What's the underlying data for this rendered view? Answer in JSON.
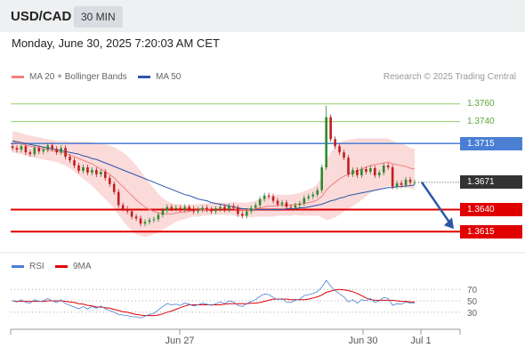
{
  "header": {
    "pair": "USD/CAD",
    "timeframe": "30 MIN"
  },
  "datetime": "Monday, June 30, 2025 7:20:03 AM CET",
  "legend": {
    "ma20_label": "MA 20 + Bollinger Bands",
    "ma50_label": "MA 50",
    "rsi_label": "RSI",
    "ma9_label": "9MA",
    "credit": "Research © 2025 Trading Central"
  },
  "colors": {
    "ma20": "#f08080",
    "ma50": "#2b57a6",
    "bollinger_fill": "#fbdada",
    "candle_up": "#2f8a2f",
    "candle_down": "#c0201f",
    "target_line": "#e00000",
    "resistance_line": "#8fcf6b",
    "pivot_line": "#4a7fd4",
    "rsi": "#4a7fd4",
    "rsi_ma": "#e00000"
  },
  "chart_data": [
    {
      "type": "line",
      "name": "price",
      "y_range": [
        1.3597,
        1.3778
      ],
      "x_ticks": [
        "Jun 27",
        "Jun 30",
        "Jul 1"
      ],
      "levels": [
        {
          "label": "1.3760",
          "value": 1.376,
          "kind": "resistance"
        },
        {
          "label": "1.3740",
          "value": 1.374,
          "kind": "resistance"
        },
        {
          "label": "1.3715",
          "value": 1.3715,
          "kind": "pivot"
        },
        {
          "label": "1.3671",
          "value": 1.3671,
          "kind": "current"
        },
        {
          "label": "1.3640",
          "value": 1.364,
          "kind": "target"
        },
        {
          "label": "1.3615",
          "value": 1.3615,
          "kind": "target"
        }
      ],
      "closes": [
        1.371,
        1.3708,
        1.3712,
        1.3705,
        1.3703,
        1.371,
        1.3706,
        1.3708,
        1.3713,
        1.3709,
        1.3705,
        1.371,
        1.37,
        1.3696,
        1.369,
        1.3684,
        1.3688,
        1.3682,
        1.3685,
        1.368,
        1.3683,
        1.3676,
        1.3669,
        1.366,
        1.3645,
        1.3641,
        1.3638,
        1.3632,
        1.363,
        1.3624,
        1.3626,
        1.3628,
        1.3629,
        1.3634,
        1.3639,
        1.3643,
        1.3641,
        1.3642,
        1.364,
        1.3643,
        1.3641,
        1.3638,
        1.364,
        1.3642,
        1.364,
        1.3638,
        1.3641,
        1.3643,
        1.364,
        1.3644,
        1.3642,
        1.3635,
        1.3633,
        1.3638,
        1.3642,
        1.3645,
        1.3652,
        1.3656,
        1.3655,
        1.365,
        1.3646,
        1.3648,
        1.3643,
        1.3642,
        1.3645,
        1.3647,
        1.3653,
        1.3655,
        1.3657,
        1.3662,
        1.3688,
        1.3745,
        1.372,
        1.3712,
        1.3705,
        1.3699,
        1.368,
        1.3685,
        1.3679,
        1.3686,
        1.3683,
        1.3687,
        1.3679,
        1.3682,
        1.369,
        1.3688,
        1.3666,
        1.367,
        1.3668,
        1.3674,
        1.3671,
        1.3671
      ],
      "ma20": [
        1.3717,
        1.3716,
        1.3715,
        1.3713,
        1.3712,
        1.3711,
        1.371,
        1.3709,
        1.3708,
        1.3707,
        1.3706,
        1.3705,
        1.3704,
        1.3702,
        1.37,
        1.3698,
        1.3696,
        1.3694,
        1.3692,
        1.3689,
        1.3686,
        1.3683,
        1.368,
        1.3676,
        1.3671,
        1.3666,
        1.3661,
        1.3656,
        1.3651,
        1.3647,
        1.3643,
        1.364,
        1.3638,
        1.3636,
        1.3635,
        1.3635,
        1.3635,
        1.3636,
        1.3637,
        1.3637,
        1.3638,
        1.3639,
        1.3639,
        1.364,
        1.364,
        1.3641,
        1.3641,
        1.3641,
        1.3641,
        1.3641,
        1.3641,
        1.364,
        1.364,
        1.364,
        1.364,
        1.3641,
        1.3642,
        1.3643,
        1.3644,
        1.3644,
        1.3645,
        1.3645,
        1.3645,
        1.3645,
        1.3646,
        1.3646,
        1.3647,
        1.3648,
        1.3649,
        1.3651,
        1.3655,
        1.3662,
        1.3667,
        1.3671,
        1.3675,
        1.3678,
        1.368,
        1.3682,
        1.3684,
        1.3686,
        1.3688,
        1.369,
        1.3691,
        1.3692,
        1.3693,
        1.3694,
        1.3692,
        1.3691,
        1.369,
        1.3689,
        1.3687,
        1.3686
      ],
      "bb_width": [
        0.0012,
        0.0012,
        0.0012,
        0.0012,
        0.0012,
        0.0012,
        0.0012,
        0.0012,
        0.0012,
        0.0012,
        0.0012,
        0.0013,
        0.0014,
        0.0015,
        0.0017,
        0.0019,
        0.0021,
        0.0023,
        0.0025,
        0.0027,
        0.0029,
        0.0031,
        0.0033,
        0.0035,
        0.0037,
        0.0039,
        0.004,
        0.004,
        0.0039,
        0.0037,
        0.0034,
        0.003,
        0.0026,
        0.0022,
        0.0018,
        0.0015,
        0.0012,
        0.001,
        0.0009,
        0.0008,
        0.0007,
        0.0007,
        0.0007,
        0.0007,
        0.0007,
        0.0007,
        0.0007,
        0.0007,
        0.0007,
        0.0007,
        0.0008,
        0.0008,
        0.0008,
        0.0008,
        0.0009,
        0.0009,
        0.001,
        0.0011,
        0.0012,
        0.0012,
        0.0012,
        0.0012,
        0.0012,
        0.0012,
        0.0012,
        0.0013,
        0.0014,
        0.0015,
        0.0016,
        0.0018,
        0.0024,
        0.0034,
        0.0038,
        0.004,
        0.0041,
        0.004,
        0.0039,
        0.0038,
        0.0037,
        0.0035,
        0.0033,
        0.0031,
        0.003,
        0.0029,
        0.0028,
        0.0027,
        0.0026,
        0.0025,
        0.0025,
        0.0024,
        0.0023,
        0.0023
      ],
      "ma50": [
        1.3718,
        1.3717,
        1.3716,
        1.3715,
        1.3714,
        1.3713,
        1.3712,
        1.3711,
        1.371,
        1.3709,
        1.3708,
        1.3707,
        1.3706,
        1.3705,
        1.3704,
        1.3703,
        1.3701,
        1.37,
        1.3698,
        1.3697,
        1.3695,
        1.3693,
        1.3691,
        1.3689,
        1.3687,
        1.3685,
        1.3683,
        1.3681,
        1.3679,
        1.3677,
        1.3675,
        1.3673,
        1.3671,
        1.3669,
        1.3667,
        1.3665,
        1.3663,
        1.3661,
        1.3659,
        1.3657,
        1.3656,
        1.3654,
        1.3652,
        1.3651,
        1.365,
        1.3648,
        1.3647,
        1.3646,
        1.3645,
        1.3644,
        1.3643,
        1.3642,
        1.3641,
        1.3641,
        1.364,
        1.364,
        1.364,
        1.364,
        1.364,
        1.364,
        1.364,
        1.364,
        1.3641,
        1.3641,
        1.3641,
        1.3642,
        1.3642,
        1.3643,
        1.3644,
        1.3645,
        1.3646,
        1.3648,
        1.365,
        1.3651,
        1.3653,
        1.3654,
        1.3656,
        1.3657,
        1.3658,
        1.3659,
        1.366,
        1.3661,
        1.3662,
        1.3663,
        1.3664,
        1.3665,
        1.3665,
        1.3666,
        1.3666,
        1.3667,
        1.3667,
        1.3668
      ]
    },
    {
      "type": "line",
      "name": "rsi",
      "ylim": [
        0,
        100
      ],
      "ticks": [
        "70",
        "50",
        "30"
      ],
      "rsi": [
        50,
        48,
        52,
        47,
        46,
        52,
        49,
        50,
        54,
        50,
        47,
        52,
        45,
        42,
        39,
        36,
        40,
        36,
        40,
        37,
        41,
        36,
        33,
        30,
        26,
        25,
        24,
        22,
        22,
        20,
        23,
        26,
        28,
        34,
        40,
        45,
        43,
        44,
        42,
        46,
        44,
        41,
        43,
        46,
        44,
        42,
        45,
        48,
        45,
        50,
        48,
        42,
        40,
        45,
        49,
        52,
        58,
        62,
        61,
        56,
        52,
        54,
        48,
        47,
        51,
        53,
        59,
        61,
        63,
        66,
        74,
        86,
        76,
        68,
        62,
        57,
        48,
        52,
        46,
        52,
        50,
        54,
        47,
        50,
        56,
        54,
        42,
        45,
        44,
        48,
        46,
        46
      ],
      "ma9": [
        50,
        49,
        49,
        49,
        49,
        49,
        49,
        49,
        50,
        50,
        50,
        50,
        49,
        48,
        47,
        45,
        44,
        42,
        41,
        39,
        39,
        38,
        37,
        35,
        33,
        31,
        30,
        28,
        26,
        25,
        24,
        24,
        24,
        25,
        27,
        30,
        32,
        35,
        38,
        41,
        43,
        43,
        43,
        43,
        43,
        43,
        43,
        43,
        44,
        45,
        45,
        45,
        45,
        45,
        46,
        46,
        47,
        49,
        51,
        53,
        53,
        53,
        53,
        52,
        52,
        52,
        52,
        53,
        55,
        57,
        60,
        65,
        67,
        69,
        70,
        69,
        68,
        66,
        63,
        59,
        55,
        52,
        51,
        51,
        51,
        51,
        51,
        50,
        49,
        49,
        48,
        48
      ]
    }
  ]
}
